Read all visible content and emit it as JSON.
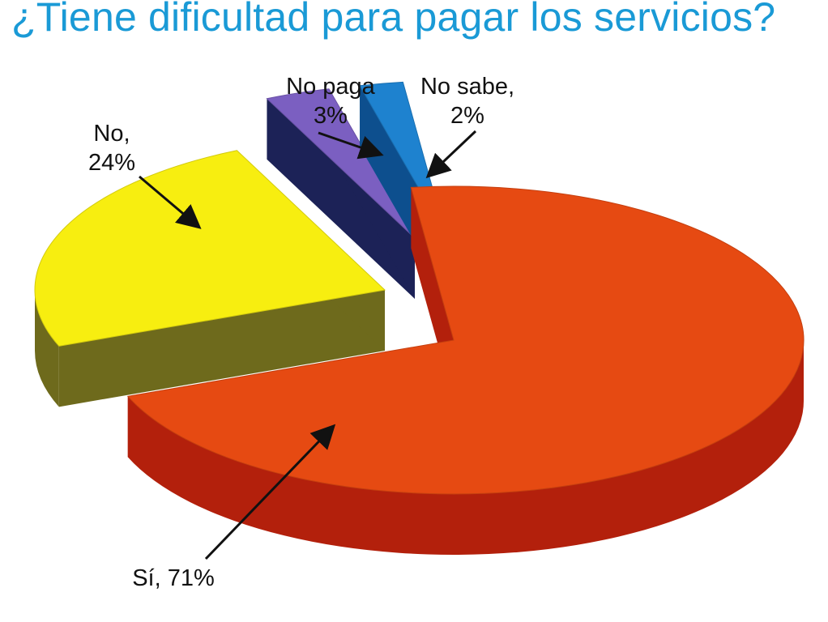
{
  "colors": {
    "title": "#1a9ad6",
    "arrow": "#111111"
  },
  "chart_data": {
    "type": "pie",
    "title": "¿Tiene dificultad para pagar los servicios?",
    "slices": [
      {
        "name": "Sí",
        "label_lines": [
          "Sí, 71%"
        ],
        "value": 71,
        "color": "#e64a12",
        "side_color": "#b3200c"
      },
      {
        "name": "No",
        "label_lines": [
          "No,",
          "24%"
        ],
        "value": 24,
        "color": "#f7ee10",
        "side_color": "#6e6a1c"
      },
      {
        "name": "No paga",
        "label_lines": [
          "No paga",
          "3%"
        ],
        "value": 3,
        "color": "#7b5fc1",
        "side_color": "#1c2257"
      },
      {
        "name": "No sabe",
        "label_lines": [
          "No sabe,",
          "2%"
        ],
        "value": 2,
        "color": "#1e82cf",
        "side_color": "#0d4f8e"
      }
    ],
    "style": "3d exploded pie",
    "legend": "none"
  }
}
